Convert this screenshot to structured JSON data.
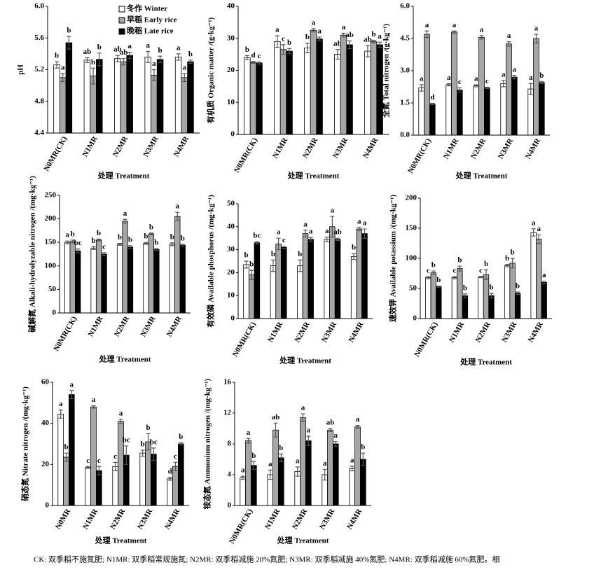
{
  "chart_data": [
    {
      "type": "bar",
      "y_label": "pH",
      "x_label": "处理 Treatment",
      "legend": true,
      "categories": [
        "N0MR(CK)",
        "N1MR",
        "N2MR",
        "N3MR",
        "N4MR"
      ],
      "ylim": [
        4.4,
        6
      ],
      "yticks": [
        4.4,
        4.8,
        5.2,
        5.6,
        {
          "value": 6,
          "label": "6.0"
        }
      ],
      "series": [
        {
          "name": "冬作 Winter",
          "color": "#ffffff",
          "values": [
            5.26,
            5.32,
            5.34,
            5.36,
            5.36
          ],
          "errors": [
            0.04,
            0.03,
            0.04,
            0.07,
            0.04
          ],
          "letters": [
            "b",
            "ab",
            "ab",
            "a",
            "a"
          ]
        },
        {
          "name": "早稻 Early rice",
          "color": "#a6a6a6",
          "values": [
            5.1,
            5.12,
            5.3,
            5.13,
            5.1
          ],
          "errors": [
            0.05,
            0.1,
            0.04,
            0.07,
            0.05
          ],
          "letters": [
            "a",
            "b",
            "ab",
            "a",
            "a"
          ]
        },
        {
          "name": "晚稻 Late rice",
          "color": "#000000",
          "values": [
            5.54,
            5.33,
            5.38,
            5.33,
            5.3
          ],
          "errors": [
            0.08,
            0.08,
            0.04,
            0.04,
            0.02
          ],
          "letters": [
            "b",
            "b",
            "a",
            "b",
            "b"
          ]
        }
      ]
    },
    {
      "type": "bar",
      "y_label": "有机质 Organic matter /(g·kg⁻¹)",
      "x_label": "处理 Treatment",
      "categories": [
        "N0MR(CK)",
        "N1MR",
        "N2MR",
        "N3MR",
        "N4MR"
      ],
      "ylim": [
        0,
        40
      ],
      "yticks": [
        0,
        10,
        20,
        30,
        40
      ],
      "series": [
        {
          "color": "#ffffff",
          "values": [
            24,
            29,
            27,
            25,
            26
          ],
          "errors": [
            0.6,
            1.8,
            1.5,
            1.5,
            1.8
          ],
          "letters": [
            "b",
            "a",
            "b",
            "ab",
            "ab"
          ]
        },
        {
          "color": "#a6a6a6",
          "values": [
            22.5,
            26.5,
            32.5,
            31,
            29
          ],
          "errors": [
            0.3,
            1.5,
            0.5,
            0.6,
            0.4
          ],
          "letters": [
            "d",
            "c",
            "a",
            "a",
            "b"
          ]
        },
        {
          "color": "#000000",
          "values": [
            22.3,
            26,
            29.8,
            28,
            28
          ],
          "errors": [
            0.3,
            0.8,
            0.6,
            1.2,
            0.8
          ],
          "letters": [
            "c",
            "b",
            "a",
            "ab",
            "a"
          ]
        }
      ]
    },
    {
      "type": "bar",
      "y_label": "全氮 Total nitrogen /(g·kg⁻¹)",
      "x_label": "处理 Treatment",
      "categories": [
        "N0MR(CK)",
        "N1MR",
        "N2MR",
        "N3MR",
        "N4MR"
      ],
      "ylim": [
        0,
        6
      ],
      "yticks": [
        {
          "value": 0,
          "label": "0.0"
        },
        1.5,
        {
          "value": 3,
          "label": "3.0"
        },
        4.5,
        {
          "value": 6,
          "label": "6.0"
        }
      ],
      "series": [
        {
          "color": "#ffffff",
          "values": [
            2.2,
            2.35,
            2.3,
            2.4,
            2.15
          ],
          "errors": [
            0.15,
            0.05,
            0.05,
            0.15,
            0.25
          ],
          "letters": [
            "a",
            "a",
            "a",
            "a",
            "a"
          ]
        },
        {
          "color": "#a6a6a6",
          "values": [
            4.7,
            4.8,
            4.55,
            4.25,
            4.5
          ],
          "errors": [
            0.15,
            0.05,
            0.08,
            0.1,
            0.2
          ],
          "letters": [
            "a",
            "a",
            "a",
            "a",
            "a"
          ]
        },
        {
          "color": "#000000",
          "values": [
            1.45,
            2.1,
            2.2,
            2.7,
            2.45
          ],
          "errors": [
            0.03,
            0.1,
            0.03,
            0.08,
            0.05
          ],
          "letters": [
            "d",
            "c",
            "c",
            "a",
            "b"
          ]
        }
      ]
    },
    {
      "type": "bar",
      "y_label": "碱解氮 Alkali-hydrolyzable nitrogen /(mg·kg⁻¹)",
      "x_label": "处理 Treatment",
      "categories": [
        "N0MR(CK)",
        "N1MR",
        "N2MR",
        "N3MR",
        "N4MR"
      ],
      "ylim": [
        0,
        250
      ],
      "yticks": [
        0,
        50,
        100,
        150,
        200,
        250
      ],
      "series": [
        {
          "color": "#ffffff",
          "values": [
            150,
            138,
            146,
            148,
            146
          ],
          "errors": [
            3,
            3,
            2,
            2,
            3
          ],
          "letters": [
            "a",
            "b",
            "b",
            "b",
            "b"
          ]
        },
        {
          "color": "#a6a6a6",
          "values": [
            152,
            155,
            195,
            168,
            205
          ],
          "errors": [
            3,
            2,
            4,
            2,
            9
          ],
          "letters": [
            "b",
            "b",
            "a",
            "b",
            "a"
          ]
        },
        {
          "color": "#000000",
          "values": [
            132,
            125,
            140,
            135,
            144
          ],
          "errors": [
            4,
            3,
            3,
            2,
            2
          ],
          "letters": [
            "bc",
            "c",
            "b",
            "b",
            "b"
          ]
        }
      ]
    },
    {
      "type": "bar",
      "y_label": "有效磷 Available phosphorus /(mg·kg⁻¹)",
      "x_label": "处理 Treatment",
      "categories": [
        "N0MR(CK)",
        "N1MR",
        "N2MR",
        "N3MR",
        "N4MR"
      ],
      "ylim": [
        0,
        50
      ],
      "yticks": [
        0,
        10,
        20,
        30,
        40,
        50
      ],
      "series": [
        {
          "color": "#ffffff",
          "values": [
            23.5,
            23,
            23,
            34.5,
            27
          ],
          "errors": [
            1.5,
            2.5,
            2.5,
            1,
            1.3
          ],
          "letters": [
            "b",
            "b",
            "b",
            "a",
            "b"
          ]
        },
        {
          "color": "#a6a6a6",
          "values": [
            19,
            32.5,
            37,
            40,
            39
          ],
          "errors": [
            2,
            2.5,
            1.5,
            4.5,
            0.7
          ],
          "letters": [
            "b",
            "a",
            "a",
            "a",
            "a"
          ]
        },
        {
          "color": "#000000",
          "values": [
            33,
            31,
            34.5,
            34.5,
            37
          ],
          "errors": [
            0.5,
            0.5,
            0.8,
            0.5,
            2
          ],
          "letters": [
            "bc",
            "c",
            "a",
            "ab",
            "a"
          ]
        }
      ]
    },
    {
      "type": "bar",
      "y_label": "速效钾 Available potassium /(mg·kg⁻¹)",
      "x_label": "处理 Treatment",
      "categories": [
        "N0MR(CK)",
        "N1MR",
        "N2MR",
        "N3MR",
        "N4MR"
      ],
      "ylim": [
        0,
        200
      ],
      "yticks": [
        0,
        50,
        100,
        150,
        200
      ],
      "series": [
        {
          "color": "#ffffff",
          "values": [
            68,
            68,
            69,
            88,
            143
          ],
          "errors": [
            2,
            2,
            1,
            2,
            6
          ],
          "letters": [
            "c",
            "c",
            "c",
            "b",
            "a"
          ]
        },
        {
          "color": "#a6a6a6",
          "values": [
            76,
            83,
            73,
            92,
            132
          ],
          "errors": [
            3,
            4,
            8,
            8,
            7
          ],
          "letters": [
            "b",
            "b",
            "b",
            "b",
            "a"
          ]
        },
        {
          "color": "#000000",
          "values": [
            53,
            38,
            38,
            42,
            60
          ],
          "errors": [
            1,
            3,
            4,
            2,
            2
          ],
          "letters": [
            "b",
            "b",
            "b",
            "b",
            "a"
          ]
        }
      ]
    },
    {
      "type": "bar",
      "y_label": "硝态氮 Nitrate nitrogen /(mg·kg⁻¹)",
      "x_label": "处理 Treatment",
      "categories": [
        "N0MR",
        "N1MR",
        "N2MR",
        "N3MR",
        "N4MR"
      ],
      "ylim": [
        0,
        60
      ],
      "yticks": [
        0,
        20,
        40,
        60
      ],
      "series": [
        {
          "color": "#ffffff",
          "values": [
            44.5,
            18.5,
            19,
            25.5,
            13
          ],
          "errors": [
            2,
            0.5,
            2,
            1.5,
            0.7
          ],
          "letters": [
            "a",
            "c",
            "c",
            "b",
            "d"
          ]
        },
        {
          "color": "#a6a6a6",
          "values": [
            23.5,
            48,
            41,
            31,
            19
          ],
          "errors": [
            2,
            0.6,
            1,
            4,
            2
          ],
          "letters": [
            "b",
            "a",
            "a",
            "b",
            "c"
          ]
        },
        {
          "color": "#000000",
          "values": [
            54,
            17,
            24.5,
            25,
            30
          ],
          "errors": [
            2,
            2,
            4.5,
            3,
            0.5
          ],
          "letters": [
            "a",
            "c",
            "bc",
            "bc",
            "b"
          ]
        }
      ]
    },
    {
      "type": "bar",
      "y_label": "铵态氮 Ammonium nitrogen /(mg·kg⁻¹)",
      "x_label": "处理 Treatment",
      "categories": [
        "N0MR(CK)",
        "N1MR",
        "N2MR",
        "N3MR",
        "N4MR"
      ],
      "ylim": [
        0,
        16
      ],
      "yticks": [
        0,
        4,
        8,
        12,
        16
      ],
      "series": [
        {
          "color": "#ffffff",
          "values": [
            3.6,
            4,
            4.4,
            4,
            4.8
          ],
          "errors": [
            0.2,
            0.6,
            0.6,
            0.7,
            0.3
          ],
          "letters": [
            "a",
            "a",
            "a",
            "a",
            "a"
          ]
        },
        {
          "color": "#a6a6a6",
          "values": [
            8.4,
            9.8,
            11.4,
            9.8,
            10.2
          ],
          "errors": [
            0.3,
            0.9,
            0.5,
            0.2,
            0.2
          ],
          "letters": [
            "a",
            "ab",
            "a",
            "ab",
            "a"
          ]
        },
        {
          "color": "#000000",
          "values": [
            5.2,
            6.2,
            8.4,
            8,
            6
          ],
          "errors": [
            0.5,
            0.5,
            0.6,
            0.3,
            0.8
          ],
          "letters": [
            "b",
            "b",
            "a",
            "a",
            "b"
          ]
        }
      ]
    }
  ],
  "caption": "CK: 双季稻不施氮肥; N1MR: 双季稻常规施氮; N2MR: 双季稻减施 20%氮肥; N3MR: 双季稻减施 40%氮肥; N4MR: 双季稻减施 60%氮肥。相"
}
